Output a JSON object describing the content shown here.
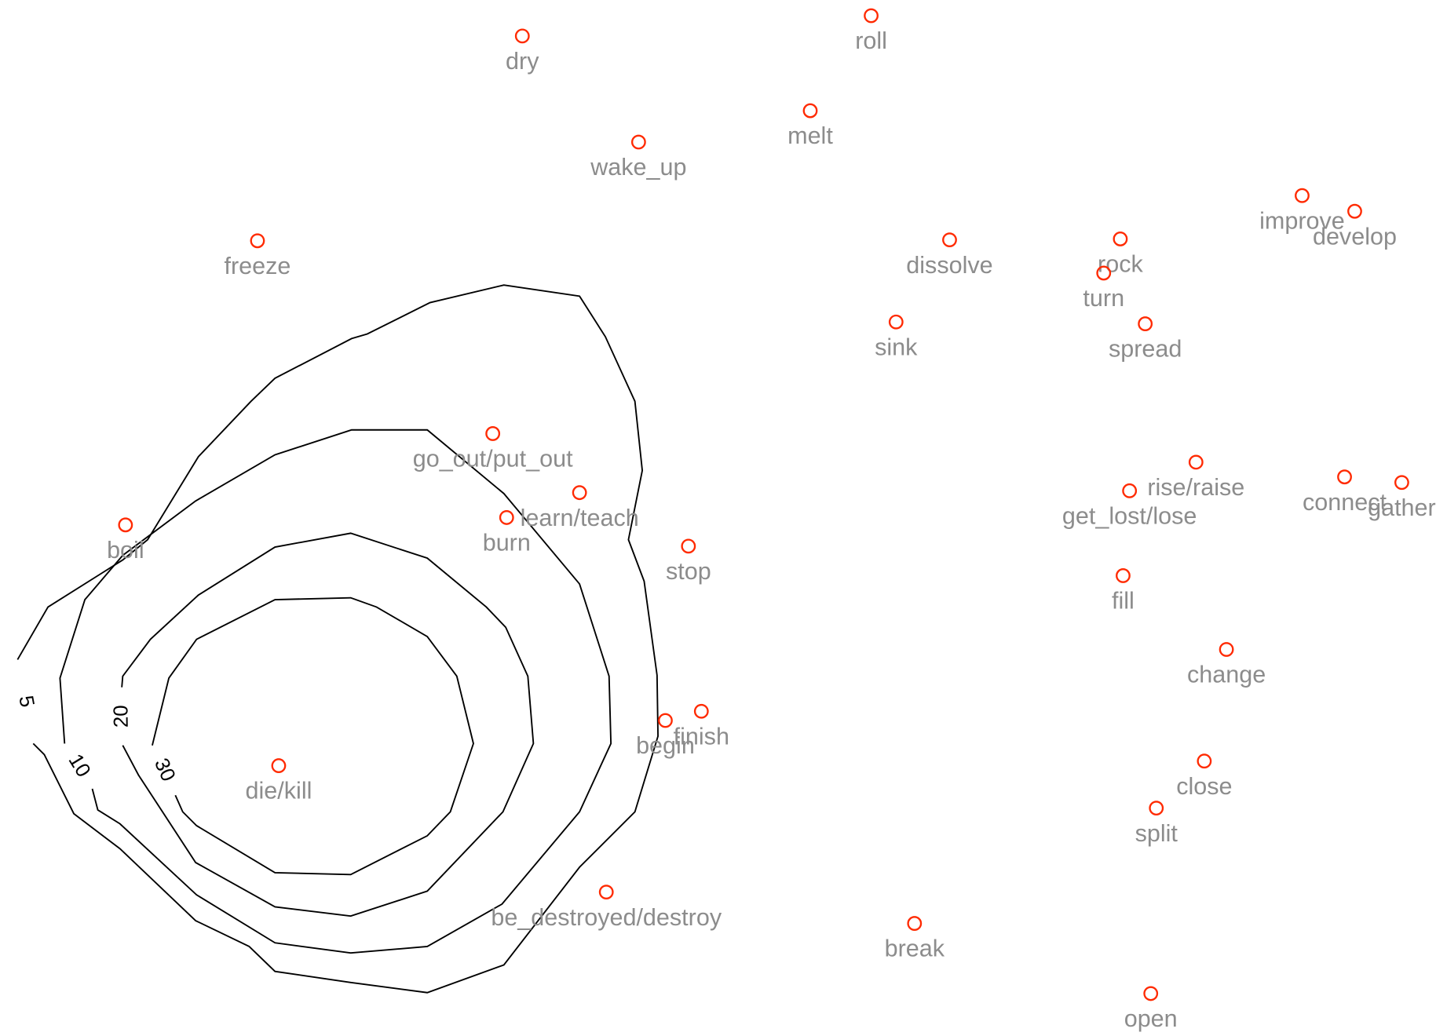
{
  "chart_data": {
    "type": "scatter",
    "xlim": [
      0,
      1568
    ],
    "ylim": [
      0,
      1123
    ],
    "marker_color": "#ff2a00",
    "label_color": "#8c8c8c",
    "contour_color": "#000000",
    "labels": [
      "dry",
      "roll",
      "melt",
      "wake_up",
      "freeze",
      "dissolve",
      "rock",
      "turn",
      "improve",
      "develop",
      "sink",
      "spread",
      "go_out/put_out",
      "learn/teach",
      "burn",
      "boil",
      "stop",
      "rise/raise",
      "get_lost/lose",
      "connect",
      "gather",
      "fill",
      "change",
      "begin",
      "finish",
      "die/kill",
      "close",
      "split",
      "be_destroyed/destroy",
      "break",
      "open"
    ],
    "x": [
      566,
      944,
      878,
      692,
      279,
      1029,
      1214,
      1196,
      1411,
      1468,
      971,
      1241,
      534,
      628,
      549,
      136,
      746,
      1296,
      1224,
      1457,
      1519,
      1217,
      1329,
      721,
      760,
      302,
      1305,
      1253,
      657,
      991,
      1247
    ],
    "y": [
      1084,
      1106,
      1003,
      969,
      862,
      863,
      864,
      827,
      911,
      894,
      774,
      772,
      653,
      589,
      562,
      554,
      531,
      622,
      591,
      606,
      600,
      499,
      419,
      342,
      352,
      293,
      298,
      247,
      156,
      122,
      46
    ],
    "contours": [
      {
        "level": 5,
        "x": [
          36,
          48,
          80,
          130,
          212,
          270,
          298,
          380,
          463,
          546,
          628,
          688,
          713,
          712,
          698,
          681,
          696,
          688,
          656,
          628,
          546,
          466,
          398,
          381,
          298,
          272,
          215,
          160,
          133,
          52,
          19
        ],
        "y": [
          317,
          305,
          241,
          203,
          125,
          97,
          70,
          58,
          47,
          77,
          183,
          243,
          325,
          391,
          493,
          538,
          613,
          688,
          758,
          802,
          814,
          795,
          761,
          756,
          713,
          688,
          628,
          538,
          516,
          465,
          408
        ]
      },
      {
        "level": 10,
        "x": [
          100,
          106,
          130,
          213,
          298,
          380,
          463,
          544,
          628,
          662,
          660,
          628,
          546,
          463,
          381,
          298,
          212,
          133,
          92,
          65,
          70
        ],
        "y": [
          268,
          245,
          230,
          153,
          101,
          90,
          97,
          143,
          243,
          317,
          390,
          490,
          588,
          657,
          657,
          630,
          580,
          521,
          473,
          388,
          317
        ]
      },
      {
        "level": 20,
        "x": [
          132,
          133,
          163,
          215,
          298,
          380,
          463,
          527,
          548,
          572,
          578,
          545,
          463,
          380,
          298,
          212,
          150,
          133
        ],
        "y": [
          378,
          390,
          430,
          478,
          530,
          545,
          518,
          465,
          443,
          390,
          317,
          243,
          157,
          130,
          140,
          188,
          283,
          315
        ]
      },
      {
        "level": 30,
        "x": [
          190,
          198,
          213,
          298,
          380,
          463,
          488,
          513,
          495,
          463,
          408,
          380,
          298,
          213,
          183,
          165
        ],
        "y": [
          261,
          243,
          228,
          177,
          175,
          217,
          243,
          317,
          390,
          433,
          465,
          475,
          473,
          430,
          388,
          315
        ]
      }
    ]
  }
}
